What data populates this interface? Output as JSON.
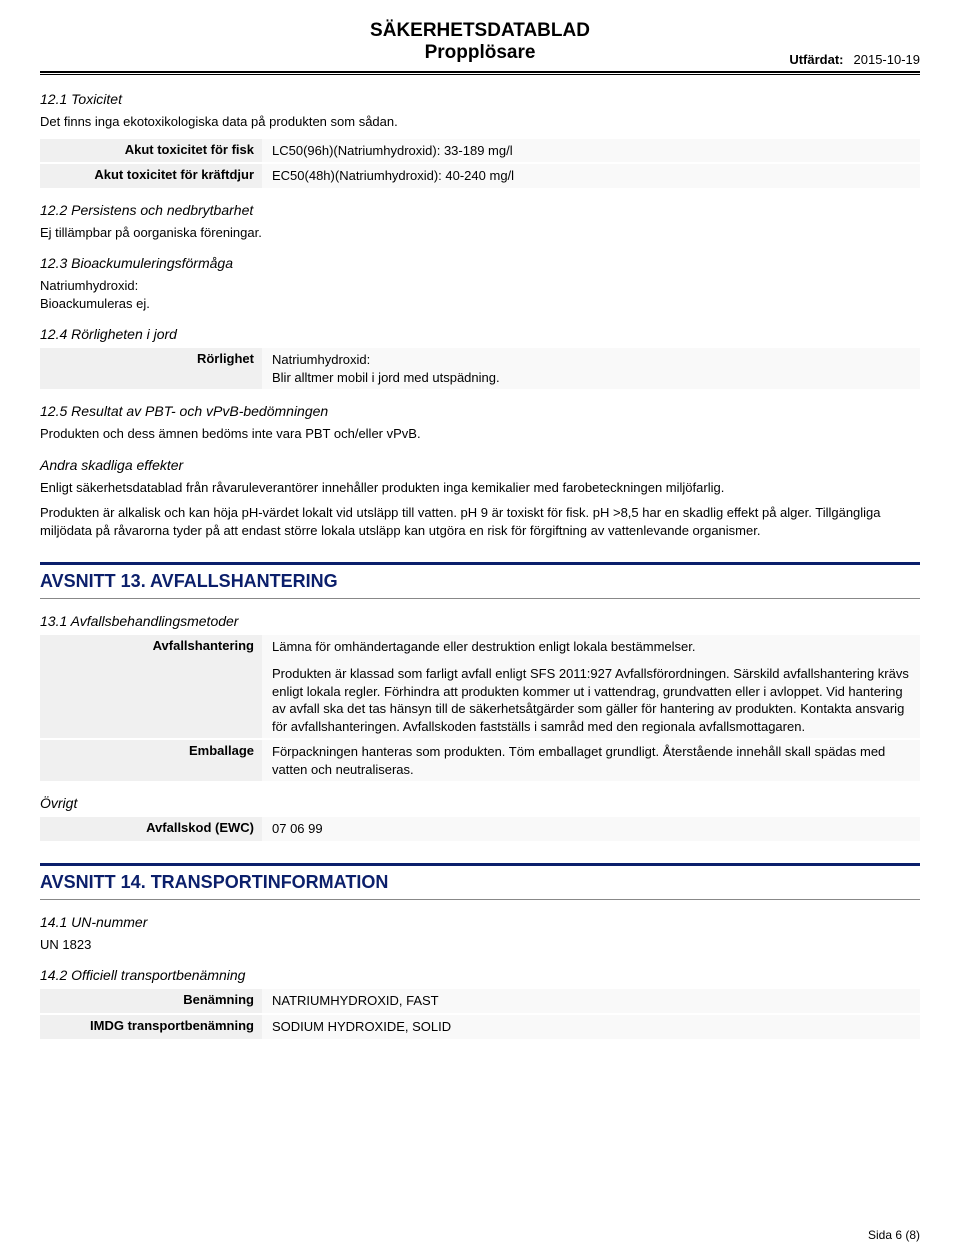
{
  "header": {
    "doc_type": "SÄKERHETSDATABLAD",
    "product_name": "Propplösare",
    "issued_label": "Utfärdat:",
    "issued_date": "2015-10-19"
  },
  "s12_1": {
    "title": "12.1 Toxicitet",
    "intro": "Det finns inga ekotoxikologiska data på produkten som sådan.",
    "rows": [
      {
        "label": "Akut toxicitet för fisk",
        "value": "LC50(96h)(Natriumhydroxid): 33-189 mg/l"
      },
      {
        "label": "Akut toxicitet för kräftdjur",
        "value": "EC50(48h)(Natriumhydroxid): 40-240 mg/l"
      }
    ]
  },
  "s12_2": {
    "title": "12.2 Persistens och nedbrytbarhet",
    "text": "Ej tillämpbar på oorganiska föreningar."
  },
  "s12_3": {
    "title": "12.3 Bioackumuleringsförmåga",
    "text": "Natriumhydroxid:\nBioackumuleras ej."
  },
  "s12_4": {
    "title": "12.4 Rörligheten i jord",
    "rows": [
      {
        "label": "Rörlighet",
        "value": "Natriumhydroxid:\nBlir alltmer mobil i jord med utspädning."
      }
    ]
  },
  "s12_5": {
    "title": "12.5 Resultat av PBT- och vPvB-bedömningen",
    "text": "Produkten och dess ämnen bedöms inte vara PBT och/eller vPvB."
  },
  "s12_other": {
    "title": "Andra skadliga effekter",
    "p1": "Enligt säkerhetsdatablad från råvaruleverantörer innehåller produkten inga kemikalier med farobeteckningen miljöfarlig.",
    "p2": "Produkten är alkalisk och kan höja pH-värdet lokalt vid utsläpp till vatten. pH 9 är toxiskt för fisk. pH >8,5 har en skadlig effekt på alger. Tillgängliga miljödata på råvarorna tyder på att endast större lokala utsläpp kan utgöra en risk för förgiftning av vattenlevande organismer."
  },
  "s13": {
    "header": "AVSNITT 13. AVFALLSHANTERING",
    "s13_1_title": "13.1 Avfallsbehandlingsmetoder",
    "rows": [
      {
        "label": "Avfallshantering",
        "value_p1": "Lämna för omhändertagande eller destruktion enligt lokala bestämmelser.",
        "value_p2": "Produkten är klassad som farligt avfall enligt SFS 2011:927 Avfallsförordningen. Särskild avfallshantering krävs enligt lokala regler. Förhindra att produkten kommer ut i vattendrag, grundvatten eller i avloppet. Vid hantering av avfall ska det tas hänsyn till de säkerhetsåtgärder som gäller för hantering av produkten. Kontakta ansvarig för avfallshanteringen. Avfallskoden fastställs i samråd med den regionala avfallsmottagaren."
      },
      {
        "label": "Emballage",
        "value": "Förpackningen hanteras som produkten. Töm emballaget grundligt. Återstående innehåll skall spädas med vatten och neutraliseras."
      }
    ],
    "other_title": "Övrigt",
    "ewc_label": "Avfallskod (EWC)",
    "ewc_value": "07 06 99"
  },
  "s14": {
    "header": "AVSNITT 14. TRANSPORTINFORMATION",
    "s14_1_title": "14.1 UN-nummer",
    "un_number": "UN 1823",
    "s14_2_title": "14.2 Officiell transportbenämning",
    "rows": [
      {
        "label": "Benämning",
        "value": "NATRIUMHYDROXID, FAST"
      },
      {
        "label": "IMDG transportbenämning",
        "value": "SODIUM HYDROXIDE, SOLID"
      }
    ]
  },
  "footer": {
    "page": "Sida 6 (8)"
  }
}
